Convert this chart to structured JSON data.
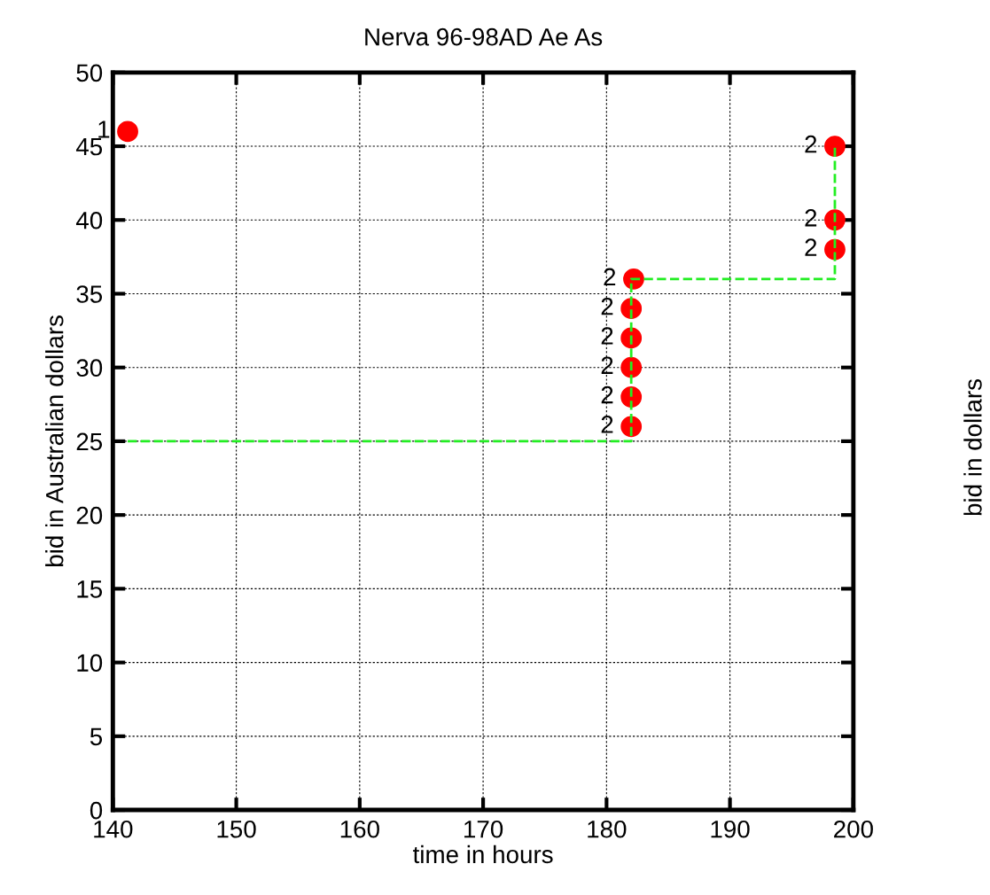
{
  "chart_data": {
    "type": "scatter",
    "title": "Nerva 96-98AD Ae As",
    "xlabel": "time in hours",
    "ylabel": "bid in Australian dollars",
    "y2label": "bid in dollars",
    "series": [
      {
        "type": "scatter",
        "color": "#ff0000",
        "x": [
          141.2,
          182.0,
          182.0,
          182.0,
          182.0,
          182.0,
          182.2,
          198.5,
          198.5,
          198.5
        ],
        "values": [
          46,
          26,
          28,
          30,
          32,
          34,
          36,
          38,
          40,
          45
        ],
        "marker": "circle"
      },
      {
        "type": "step",
        "color": "#22ee22",
        "x": [
          141.2,
          182.0,
          182.2,
          198.5
        ],
        "values": [
          25,
          36,
          36,
          45
        ],
        "line_style": "dashed",
        "marker": "none"
      }
    ],
    "annotations": [
      {
        "text": "1",
        "x": 141.2,
        "y": 46
      },
      {
        "text": "2",
        "x": 182.0,
        "y": 26
      },
      {
        "text": "2",
        "x": 182.0,
        "y": 28
      },
      {
        "text": "2",
        "x": 182.0,
        "y": 30
      },
      {
        "text": "2",
        "x": 182.0,
        "y": 32
      },
      {
        "text": "2",
        "x": 182.0,
        "y": 34
      },
      {
        "text": "2",
        "x": 182.2,
        "y": 36
      },
      {
        "text": "2",
        "x": 198.5,
        "y": 38
      },
      {
        "text": "2",
        "x": 198.5,
        "y": 40
      },
      {
        "text": "2",
        "x": 198.5,
        "y": 45
      }
    ],
    "xlim": [
      140,
      200
    ],
    "xticks": [
      140,
      150,
      160,
      170,
      180,
      190,
      200
    ],
    "ylim": [
      0,
      50
    ],
    "yticks": [
      0,
      5,
      10,
      15,
      20,
      25,
      30,
      35,
      40,
      45,
      50
    ],
    "grid": true,
    "legend": false
  }
}
